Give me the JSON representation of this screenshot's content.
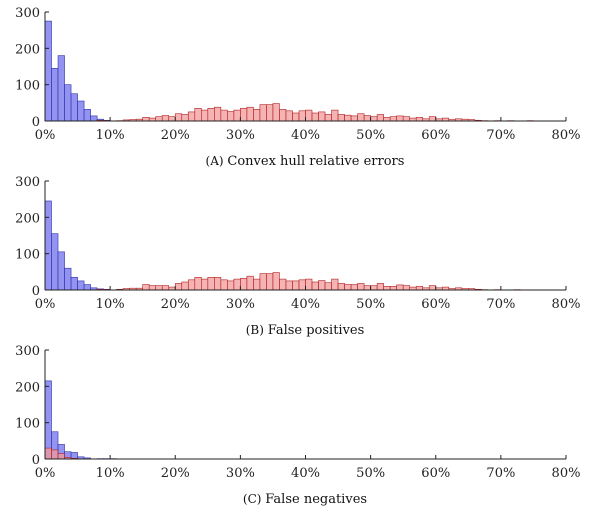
{
  "chart_data": [
    {
      "type": "bar",
      "caption_prefix": "(A)",
      "caption": "Convex hull relative errors",
      "ylim": [
        0,
        300
      ],
      "xlim": [
        0,
        80
      ],
      "yticks": [
        0,
        100,
        200,
        300
      ],
      "xticks": [
        "0%",
        "10%",
        "20%",
        "30%",
        "40%",
        "50%",
        "60%",
        "70%",
        "80%"
      ],
      "bin_width": 1,
      "series": [
        {
          "color": "#8080f0",
          "bins": [
            {
              "x": 1,
              "y": 275
            },
            {
              "x": 2,
              "y": 145
            },
            {
              "x": 3,
              "y": 180
            },
            {
              "x": 4,
              "y": 100
            },
            {
              "x": 5,
              "y": 75
            },
            {
              "x": 6,
              "y": 55
            },
            {
              "x": 7,
              "y": 32
            },
            {
              "x": 8,
              "y": 14
            },
            {
              "x": 9,
              "y": 5
            },
            {
              "x": 10,
              "y": 2
            }
          ]
        },
        {
          "color": "#f29a9a",
          "bins": [
            {
              "x": 9,
              "y": 2
            },
            {
              "x": 10,
              "y": 1
            },
            {
              "x": 12,
              "y": 1
            },
            {
              "x": 13,
              "y": 3
            },
            {
              "x": 14,
              "y": 4
            },
            {
              "x": 15,
              "y": 5
            },
            {
              "x": 16,
              "y": 10
            },
            {
              "x": 17,
              "y": 8
            },
            {
              "x": 18,
              "y": 12
            },
            {
              "x": 19,
              "y": 15
            },
            {
              "x": 20,
              "y": 12
            },
            {
              "x": 21,
              "y": 20
            },
            {
              "x": 22,
              "y": 18
            },
            {
              "x": 23,
              "y": 25
            },
            {
              "x": 24,
              "y": 35
            },
            {
              "x": 25,
              "y": 30
            },
            {
              "x": 26,
              "y": 35
            },
            {
              "x": 27,
              "y": 38
            },
            {
              "x": 28,
              "y": 30
            },
            {
              "x": 29,
              "y": 26
            },
            {
              "x": 30,
              "y": 30
            },
            {
              "x": 31,
              "y": 35
            },
            {
              "x": 32,
              "y": 38
            },
            {
              "x": 33,
              "y": 32
            },
            {
              "x": 34,
              "y": 45
            },
            {
              "x": 35,
              "y": 45
            },
            {
              "x": 36,
              "y": 48
            },
            {
              "x": 37,
              "y": 32
            },
            {
              "x": 38,
              "y": 28
            },
            {
              "x": 39,
              "y": 22
            },
            {
              "x": 40,
              "y": 28
            },
            {
              "x": 41,
              "y": 30
            },
            {
              "x": 42,
              "y": 22
            },
            {
              "x": 43,
              "y": 25
            },
            {
              "x": 44,
              "y": 18
            },
            {
              "x": 45,
              "y": 30
            },
            {
              "x": 46,
              "y": 18
            },
            {
              "x": 47,
              "y": 16
            },
            {
              "x": 48,
              "y": 14
            },
            {
              "x": 49,
              "y": 20
            },
            {
              "x": 50,
              "y": 15
            },
            {
              "x": 51,
              "y": 12
            },
            {
              "x": 52,
              "y": 18
            },
            {
              "x": 53,
              "y": 10
            },
            {
              "x": 54,
              "y": 12
            },
            {
              "x": 55,
              "y": 14
            },
            {
              "x": 56,
              "y": 12
            },
            {
              "x": 57,
              "y": 8
            },
            {
              "x": 58,
              "y": 10
            },
            {
              "x": 59,
              "y": 6
            },
            {
              "x": 60,
              "y": 12
            },
            {
              "x": 61,
              "y": 6
            },
            {
              "x": 62,
              "y": 8
            },
            {
              "x": 63,
              "y": 4
            },
            {
              "x": 64,
              "y": 6
            },
            {
              "x": 65,
              "y": 5
            },
            {
              "x": 66,
              "y": 4
            },
            {
              "x": 67,
              "y": 2
            },
            {
              "x": 68,
              "y": 1
            },
            {
              "x": 70,
              "y": 1
            },
            {
              "x": 72,
              "y": 1
            },
            {
              "x": 75,
              "y": 1
            }
          ]
        }
      ]
    },
    {
      "type": "bar",
      "caption_prefix": "(B)",
      "caption": "False positives",
      "ylim": [
        0,
        300
      ],
      "xlim": [
        0,
        80
      ],
      "yticks": [
        0,
        100,
        200,
        300
      ],
      "xticks": [
        "0%",
        "10%",
        "20%",
        "30%",
        "40%",
        "50%",
        "60%",
        "70%",
        "80%"
      ],
      "bin_width": 1,
      "series": [
        {
          "color": "#8080f0",
          "bins": [
            {
              "x": 1,
              "y": 245
            },
            {
              "x": 2,
              "y": 155
            },
            {
              "x": 3,
              "y": 105
            },
            {
              "x": 4,
              "y": 60
            },
            {
              "x": 5,
              "y": 35
            },
            {
              "x": 6,
              "y": 25
            },
            {
              "x": 7,
              "y": 15
            },
            {
              "x": 8,
              "y": 6
            },
            {
              "x": 9,
              "y": 3
            },
            {
              "x": 10,
              "y": 2
            }
          ]
        },
        {
          "color": "#f29a9a",
          "bins": [
            {
              "x": 9,
              "y": 2
            },
            {
              "x": 10,
              "y": 1
            },
            {
              "x": 12,
              "y": 2
            },
            {
              "x": 13,
              "y": 4
            },
            {
              "x": 14,
              "y": 5
            },
            {
              "x": 15,
              "y": 5
            },
            {
              "x": 16,
              "y": 15
            },
            {
              "x": 17,
              "y": 12
            },
            {
              "x": 18,
              "y": 12
            },
            {
              "x": 19,
              "y": 12
            },
            {
              "x": 20,
              "y": 8
            },
            {
              "x": 21,
              "y": 18
            },
            {
              "x": 22,
              "y": 22
            },
            {
              "x": 23,
              "y": 28
            },
            {
              "x": 24,
              "y": 35
            },
            {
              "x": 25,
              "y": 30
            },
            {
              "x": 26,
              "y": 35
            },
            {
              "x": 27,
              "y": 35
            },
            {
              "x": 28,
              "y": 28
            },
            {
              "x": 29,
              "y": 25
            },
            {
              "x": 30,
              "y": 30
            },
            {
              "x": 31,
              "y": 32
            },
            {
              "x": 32,
              "y": 38
            },
            {
              "x": 33,
              "y": 30
            },
            {
              "x": 34,
              "y": 45
            },
            {
              "x": 35,
              "y": 45
            },
            {
              "x": 36,
              "y": 48
            },
            {
              "x": 37,
              "y": 30
            },
            {
              "x": 38,
              "y": 25
            },
            {
              "x": 39,
              "y": 25
            },
            {
              "x": 40,
              "y": 28
            },
            {
              "x": 41,
              "y": 30
            },
            {
              "x": 42,
              "y": 22
            },
            {
              "x": 43,
              "y": 26
            },
            {
              "x": 44,
              "y": 20
            },
            {
              "x": 45,
              "y": 30
            },
            {
              "x": 46,
              "y": 18
            },
            {
              "x": 47,
              "y": 15
            },
            {
              "x": 48,
              "y": 15
            },
            {
              "x": 49,
              "y": 18
            },
            {
              "x": 50,
              "y": 12
            },
            {
              "x": 51,
              "y": 12
            },
            {
              "x": 52,
              "y": 18
            },
            {
              "x": 53,
              "y": 10
            },
            {
              "x": 54,
              "y": 10
            },
            {
              "x": 55,
              "y": 14
            },
            {
              "x": 56,
              "y": 12
            },
            {
              "x": 57,
              "y": 8
            },
            {
              "x": 58,
              "y": 10
            },
            {
              "x": 59,
              "y": 6
            },
            {
              "x": 60,
              "y": 12
            },
            {
              "x": 61,
              "y": 6
            },
            {
              "x": 62,
              "y": 8
            },
            {
              "x": 63,
              "y": 4
            },
            {
              "x": 64,
              "y": 6
            },
            {
              "x": 65,
              "y": 4
            },
            {
              "x": 66,
              "y": 4
            },
            {
              "x": 67,
              "y": 2
            },
            {
              "x": 68,
              "y": 1
            },
            {
              "x": 70,
              "y": 1
            },
            {
              "x": 73,
              "y": 1
            }
          ]
        }
      ]
    },
    {
      "type": "bar",
      "caption_prefix": "(C)",
      "caption": "False negatives",
      "ylim": [
        0,
        300
      ],
      "xlim": [
        0,
        80
      ],
      "yticks": [
        0,
        100,
        200,
        300
      ],
      "xticks": [
        "0%",
        "10%",
        "20%",
        "30%",
        "40%",
        "50%",
        "60%",
        "70%",
        "80%"
      ],
      "bin_width": 1,
      "series": [
        {
          "color": "#8080f0",
          "bins": [
            {
              "x": 1,
              "y": 215
            },
            {
              "x": 2,
              "y": 75
            },
            {
              "x": 3,
              "y": 40
            },
            {
              "x": 4,
              "y": 20
            },
            {
              "x": 5,
              "y": 18
            },
            {
              "x": 6,
              "y": 6
            },
            {
              "x": 7,
              "y": 3
            },
            {
              "x": 9,
              "y": 1
            },
            {
              "x": 10,
              "y": 1
            },
            {
              "x": 11,
              "y": 1
            }
          ]
        },
        {
          "color": "#f29a9a",
          "bins": [
            {
              "x": 1,
              "y": 30
            },
            {
              "x": 2,
              "y": 25
            },
            {
              "x": 3,
              "y": 15
            },
            {
              "x": 4,
              "y": 4
            },
            {
              "x": 5,
              "y": 2
            }
          ]
        }
      ]
    }
  ]
}
